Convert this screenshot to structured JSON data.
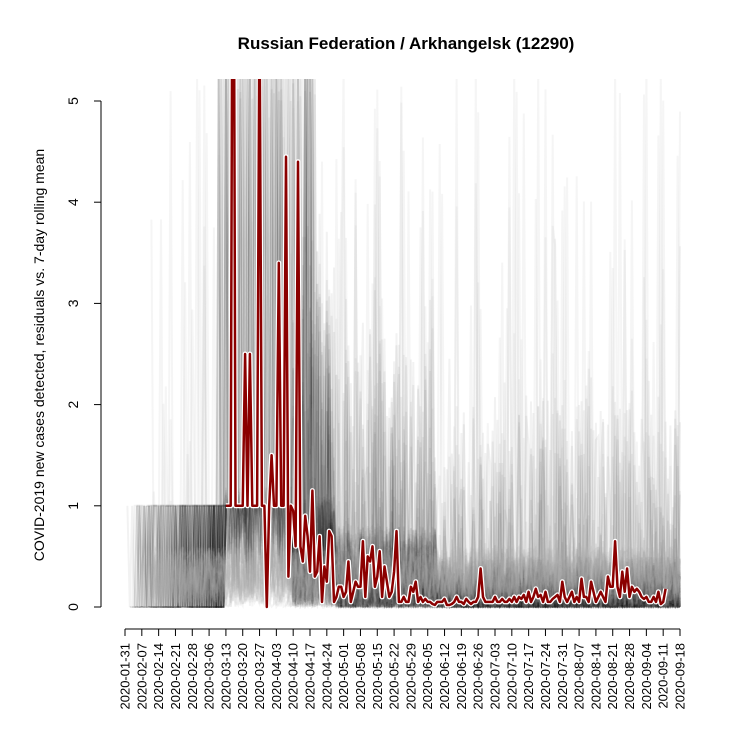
{
  "chart_data": {
    "type": "line",
    "title": "Russian Federation / Arkhangelsk (12290)",
    "ylabel": "COVID-2019 new cases detected, residuals vs. 7-day rolling mean",
    "xlabel": "",
    "ylim": [
      0,
      5
    ],
    "yticks": [
      0,
      1,
      2,
      3,
      4,
      5
    ],
    "x_start": "2020-01-31",
    "x_end": "2020-09-18",
    "xticks": [
      "2020-01-31",
      "2020-02-07",
      "2020-02-14",
      "2020-02-21",
      "2020-02-28",
      "2020-03-06",
      "2020-03-13",
      "2020-03-20",
      "2020-03-27",
      "2020-04-03",
      "2020-04-10",
      "2020-04-17",
      "2020-04-24",
      "2020-05-01",
      "2020-05-08",
      "2020-05-15",
      "2020-05-22",
      "2020-05-29",
      "2020-06-05",
      "2020-06-12",
      "2020-06-19",
      "2020-06-26",
      "2020-07-03",
      "2020-07-10",
      "2020-07-17",
      "2020-07-24",
      "2020-07-31",
      "2020-08-07",
      "2020-08-14",
      "2020-08-21",
      "2020-08-28",
      "2020-09-04",
      "2020-09-11",
      "2020-09-18"
    ],
    "grid": false,
    "background_series_color": "#000000",
    "series": [
      {
        "color": "#8b0000",
        "start_date": "2020-03-13",
        "values": [
          1,
          1,
          1,
          9,
          1,
          1,
          1,
          1,
          2.5,
          1,
          2.5,
          1,
          1,
          1,
          6,
          1,
          1,
          0,
          1,
          1.5,
          1,
          1,
          3.4,
          1,
          1,
          4.45,
          0.3,
          1,
          0.95,
          0.6,
          4.4,
          0.6,
          0.45,
          0.9,
          0.7,
          0.35,
          1.15,
          0.3,
          0.35,
          0.7,
          0.05,
          0.4,
          0.25,
          0.75,
          0.7,
          0.05,
          0.1,
          0.2,
          0.2,
          0.1,
          0.15,
          0.45,
          0.05,
          0.15,
          0.25,
          0.2,
          0.2,
          0.65,
          0.1,
          0.5,
          0.45,
          0.6,
          0.2,
          0.3,
          0.55,
          0.1,
          0.4,
          0.25,
          0.1,
          0.15,
          0.35,
          0.75,
          0.05,
          0.05,
          0.1,
          0.05,
          0.05,
          0.2,
          0.15,
          0.25,
          0.05,
          0.1,
          0.05,
          0.08,
          0.05,
          0.05,
          0.03,
          0.02,
          0.05,
          0.05,
          0.05,
          0.08,
          0.02,
          0.02,
          0.03,
          0.05,
          0.1,
          0.05,
          0.05,
          0.03,
          0.08,
          0.05,
          0.03,
          0.05,
          0.05,
          0.1,
          0.38,
          0.1,
          0.05,
          0.05,
          0.05,
          0.05,
          0.1,
          0.05,
          0.05,
          0.08,
          0.05,
          0.05,
          0.08,
          0.05,
          0.1,
          0.05,
          0.1,
          0.08,
          0.12,
          0.05,
          0.15,
          0.05,
          0.1,
          0.18,
          0.1,
          0.12,
          0.05,
          0.15,
          0.05,
          0.05,
          0.08,
          0.1,
          0.12,
          0.05,
          0.25,
          0.1,
          0.05,
          0.1,
          0.15,
          0.05,
          0.1,
          0.05,
          0.28,
          0.1,
          0.1,
          0.05,
          0.25,
          0.15,
          0.05,
          0.1,
          0.15,
          0.1,
          0.05,
          0.3,
          0.2,
          0.2,
          0.65,
          0.2,
          0.1,
          0.35,
          0.15,
          0.38,
          0.1,
          0.2,
          0.15,
          0.18,
          0.15,
          0.1,
          0.08,
          0.1,
          0.05,
          0.05,
          0.1,
          0.05,
          0.15,
          0.03,
          0.05,
          0.18
        ]
      }
    ]
  }
}
